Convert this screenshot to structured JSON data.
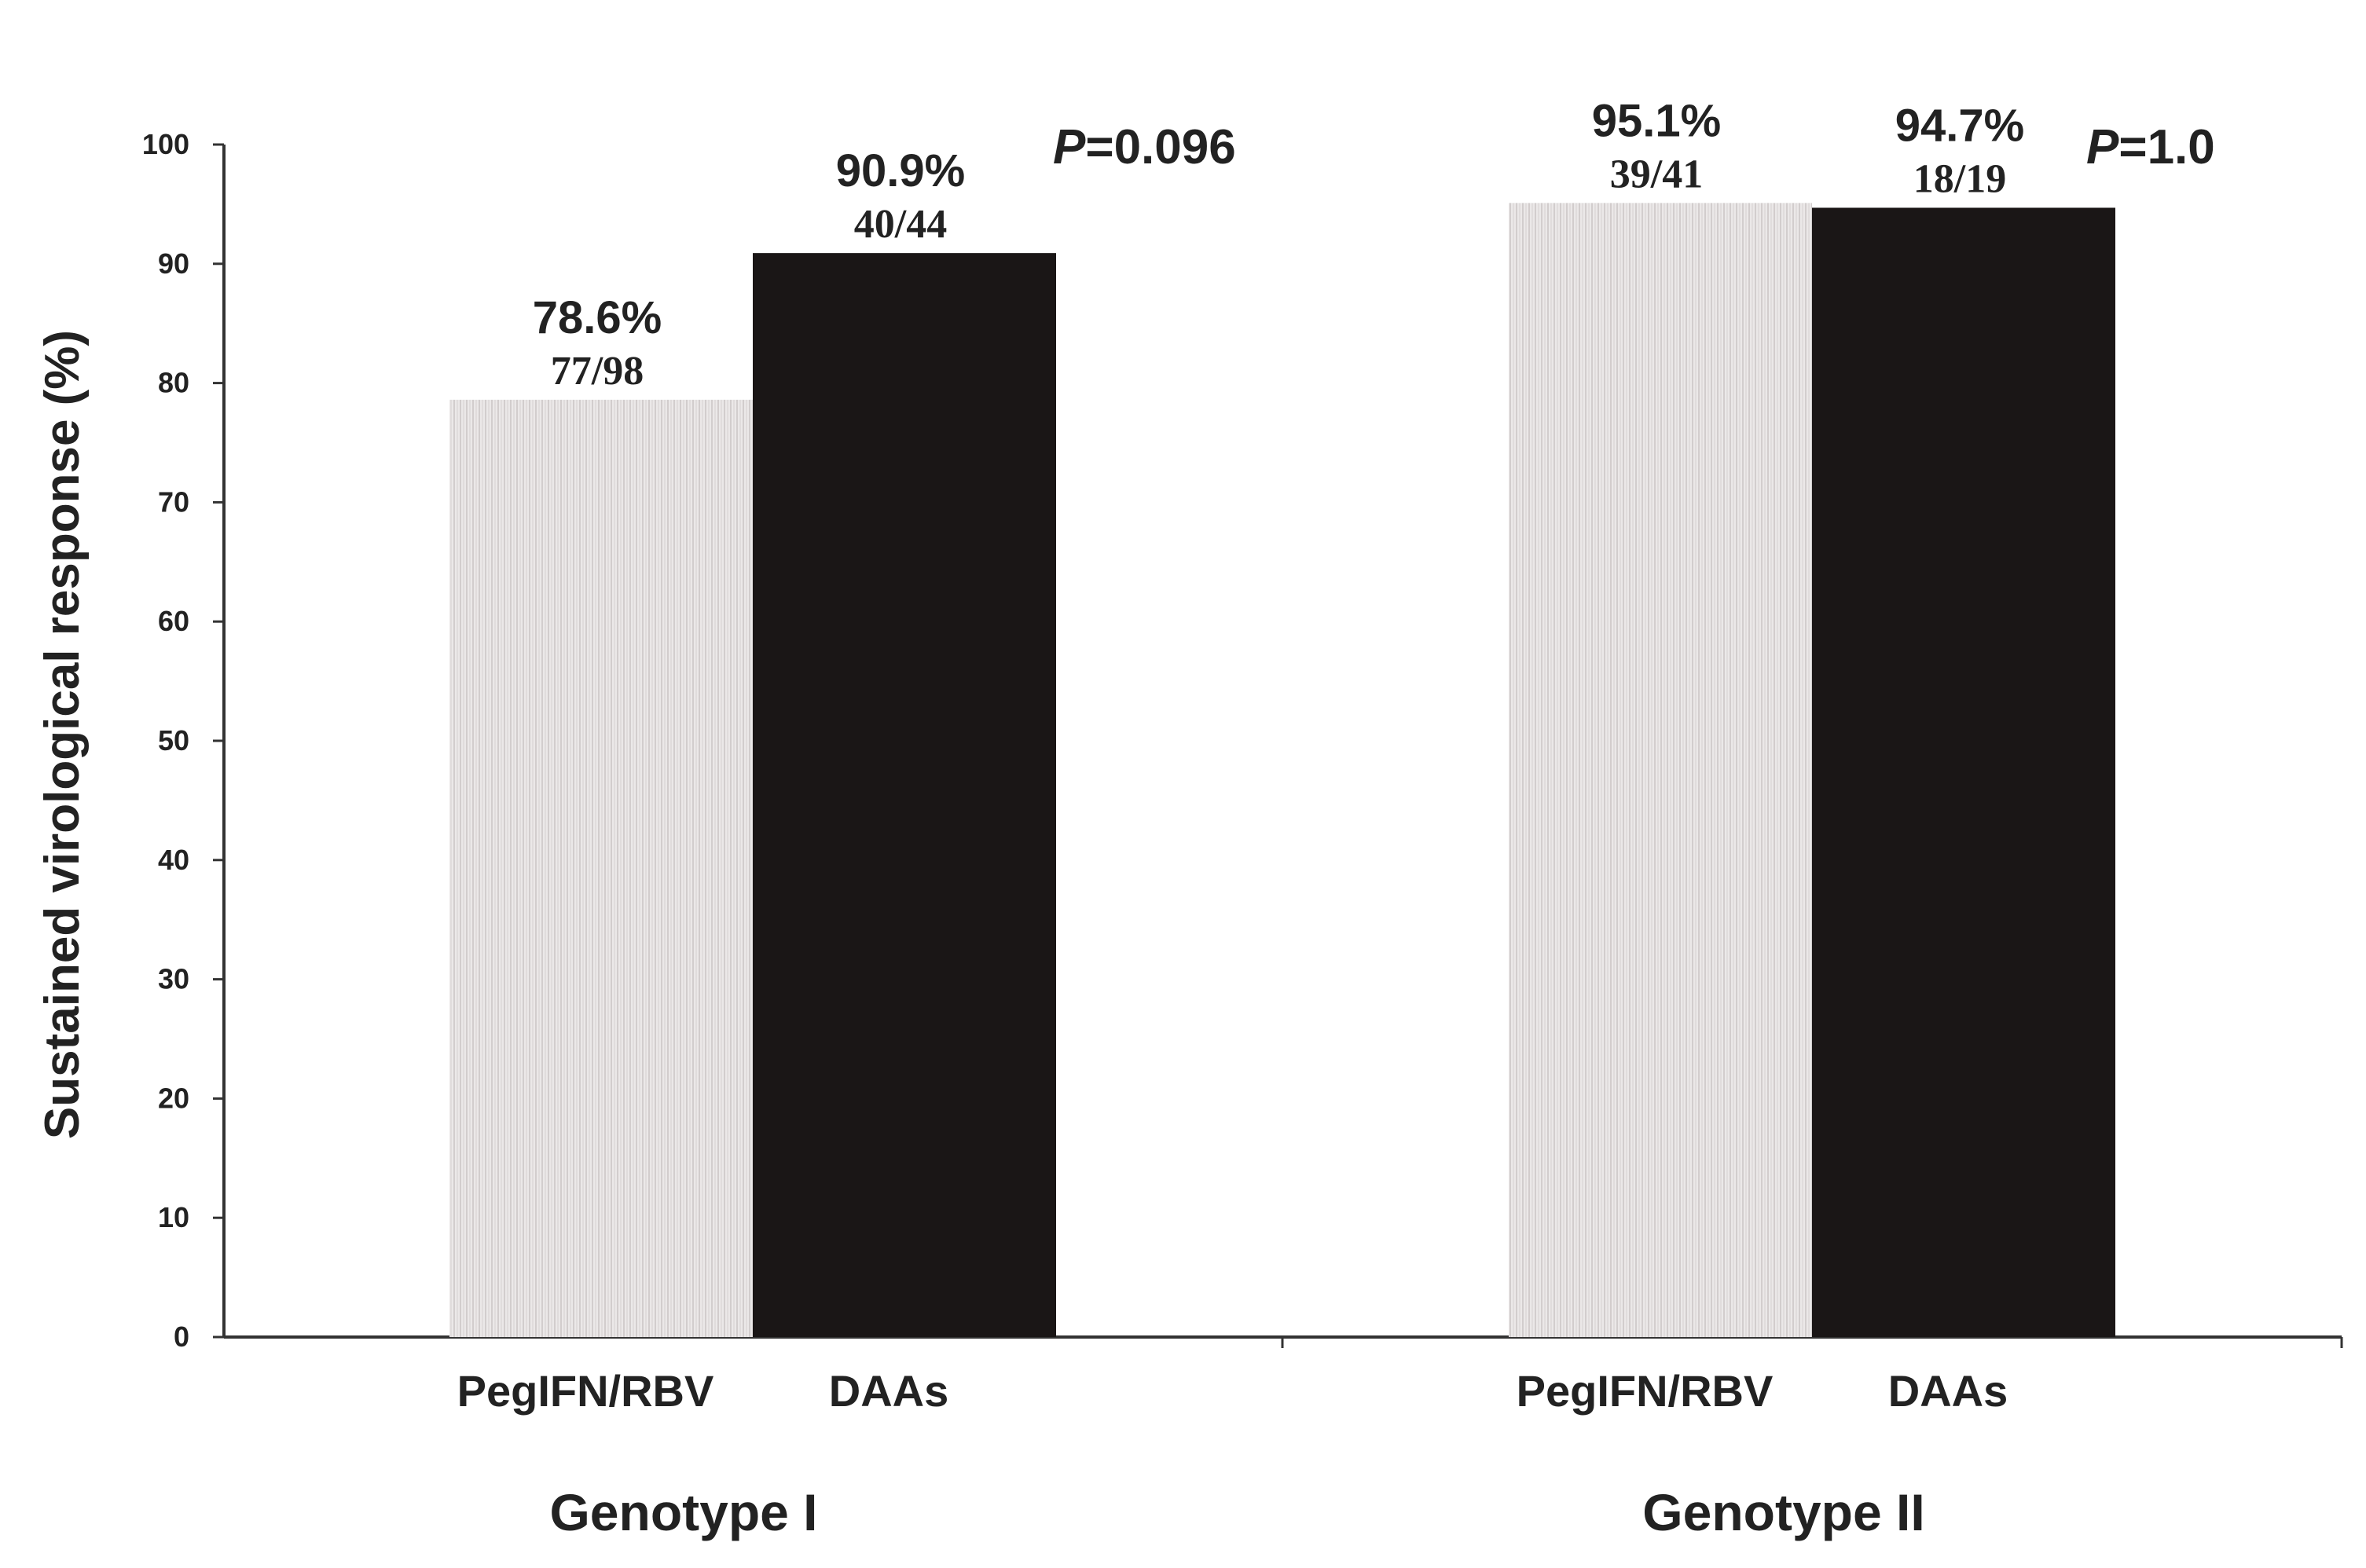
{
  "chart_data": {
    "type": "bar",
    "ylabel": "Sustained virological response (%)",
    "ylim": [
      0,
      100
    ],
    "yticks": [
      0,
      10,
      20,
      30,
      40,
      50,
      60,
      70,
      80,
      90,
      100
    ],
    "grid": false,
    "series": [
      {
        "name": "PegIFN/RBV",
        "color": "#e6e3e3",
        "hatch": "vertical-lines"
      },
      {
        "name": "DAAs",
        "color": "#1a1616"
      }
    ],
    "groups": [
      {
        "label": "Genotype I",
        "p_label": "P",
        "p_value": "=0.096",
        "bars": [
          {
            "category": "PegIFN/RBV",
            "value": 78.6,
            "pct_label": "78.6%",
            "fraction_label": "77/98"
          },
          {
            "category": "DAAs",
            "value": 90.9,
            "pct_label": "90.9%",
            "fraction_label": "40/44"
          }
        ]
      },
      {
        "label": "Genotype II",
        "p_label": "P",
        "p_value": "=1.0",
        "bars": [
          {
            "category": "PegIFN/RBV",
            "value": 95.1,
            "pct_label": "95.1%",
            "fraction_label": "39/41"
          },
          {
            "category": "DAAs",
            "value": 94.7,
            "pct_label": "94.7%",
            "fraction_label": "18/19"
          }
        ]
      }
    ]
  }
}
